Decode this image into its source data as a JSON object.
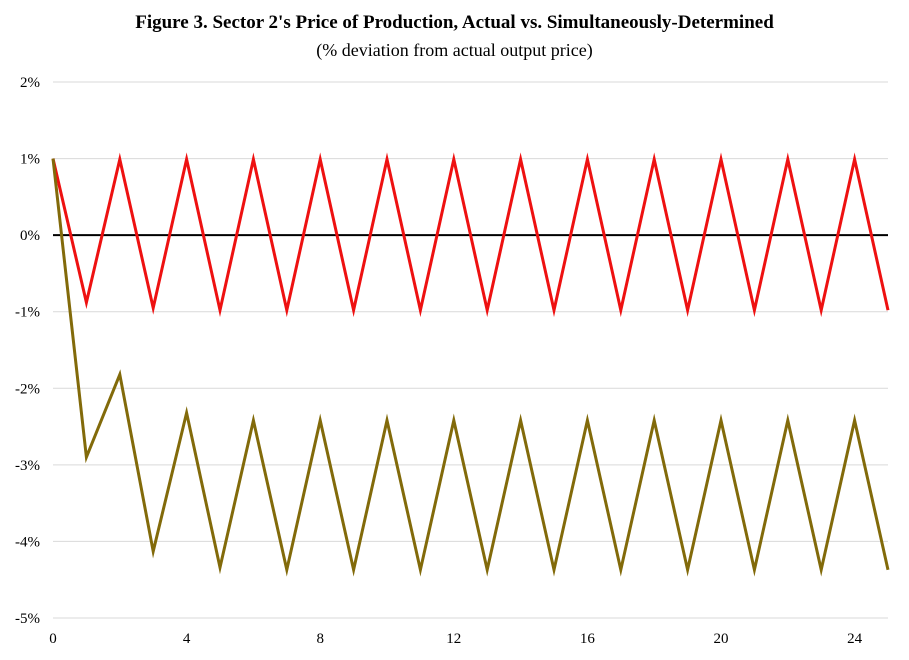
{
  "chart_data": {
    "type": "line",
    "title": "Figure 3. Sector 2's Price of Production, Actual vs. Simultaneously-Determined",
    "subtitle": "(% deviation from actual output price)",
    "xlabel": "",
    "ylabel": "",
    "xlim": [
      0,
      25
    ],
    "ylim": [
      -5,
      2
    ],
    "x_ticks": [
      0,
      4,
      8,
      12,
      16,
      20,
      24
    ],
    "y_ticks": [
      2,
      1,
      0,
      -1,
      -2,
      -3,
      -4,
      -5
    ],
    "y_tick_labels": [
      "2%",
      "1%",
      "0%",
      "-1%",
      "-2%",
      "-3%",
      "-4%",
      "-5%"
    ],
    "grid": "horizontal",
    "legend": "none",
    "zero_line": true,
    "series": [
      {
        "color": "#ee1111",
        "x": [
          0,
          1,
          2,
          3,
          4,
          5,
          6,
          7,
          8,
          9,
          10,
          11,
          12,
          13,
          14,
          15,
          16,
          17,
          18,
          19,
          20,
          21,
          22,
          23,
          24,
          25
        ],
        "values": [
          1.0,
          -0.88,
          0.99,
          -0.95,
          0.99,
          -0.98,
          0.99,
          -0.98,
          0.99,
          -0.98,
          0.99,
          -0.98,
          0.99,
          -0.98,
          0.99,
          -0.98,
          0.99,
          -0.98,
          0.99,
          -0.98,
          0.99,
          -0.98,
          0.99,
          -0.98,
          0.99,
          -0.98
        ]
      },
      {
        "color": "#826a0a",
        "x": [
          0,
          1,
          2,
          3,
          4,
          5,
          6,
          7,
          8,
          9,
          10,
          11,
          12,
          13,
          14,
          15,
          16,
          17,
          18,
          19,
          20,
          21,
          22,
          23,
          24,
          25
        ],
        "values": [
          1.0,
          -2.9,
          -1.82,
          -4.13,
          -2.32,
          -4.34,
          -2.42,
          -4.37,
          -2.42,
          -4.37,
          -2.42,
          -4.37,
          -2.42,
          -4.37,
          -2.42,
          -4.37,
          -2.42,
          -4.37,
          -2.42,
          -4.37,
          -2.42,
          -4.37,
          -2.42,
          -4.37,
          -2.42,
          -4.37
        ]
      }
    ]
  }
}
